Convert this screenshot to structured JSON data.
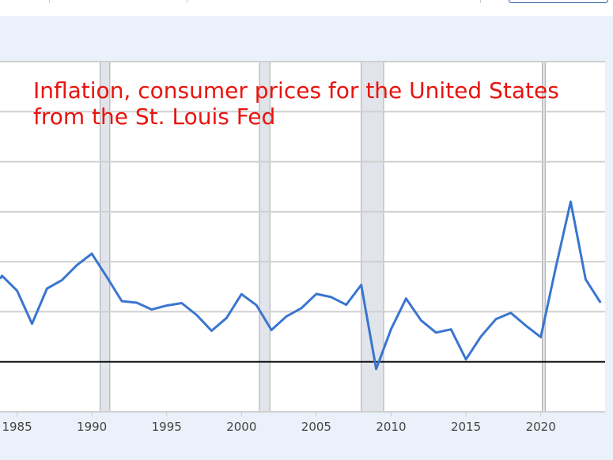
{
  "chart_data": {
    "type": "line",
    "title": "Inflation, consumer prices for the United States\nfrom the St. Louis Fed",
    "title_color": "#e8140e",
    "xlabel": "",
    "ylabel": "",
    "x_ticks": [
      "1985",
      "1990",
      "1995",
      "2000",
      "2005",
      "2010",
      "2015",
      "2020"
    ],
    "xlim": [
      1983.86,
      2024.3
    ],
    "ylim": [
      -2.5,
      15
    ],
    "y_gridline_step": 2.5,
    "grid": true,
    "zero_line": true,
    "line_color": "#3a75d0",
    "recession_shading_color": "#e1e4ea",
    "recessions": [
      [
        1990.55,
        1991.2
      ],
      [
        2001.2,
        2001.9
      ],
      [
        2008.0,
        2009.5
      ],
      [
        2020.1,
        2020.3
      ]
    ],
    "series": [
      {
        "x": [
          1984,
          1985,
          1986,
          1987,
          1988,
          1989,
          1990,
          1991,
          1992,
          1993,
          1994,
          1995,
          1996,
          1997,
          1998,
          1999,
          2000,
          2001,
          2002,
          2003,
          2004,
          2005,
          2006,
          2007,
          2008,
          2009,
          2010,
          2011,
          2012,
          2013,
          2014,
          2015,
          2016,
          2017,
          2018,
          2019,
          2020,
          2021,
          2022,
          2023,
          2024
        ],
        "values": [
          4.3,
          3.55,
          1.9,
          3.66,
          4.08,
          4.83,
          5.4,
          4.23,
          3.03,
          2.95,
          2.61,
          2.81,
          2.93,
          2.34,
          1.55,
          2.19,
          3.38,
          2.83,
          1.59,
          2.27,
          2.68,
          3.39,
          3.23,
          2.85,
          3.84,
          -0.36,
          1.64,
          3.16,
          2.07,
          1.46,
          1.62,
          0.12,
          1.26,
          2.13,
          2.44,
          1.81,
          1.23,
          4.7,
          8.0,
          4.12,
          2.95
        ]
      }
    ]
  }
}
